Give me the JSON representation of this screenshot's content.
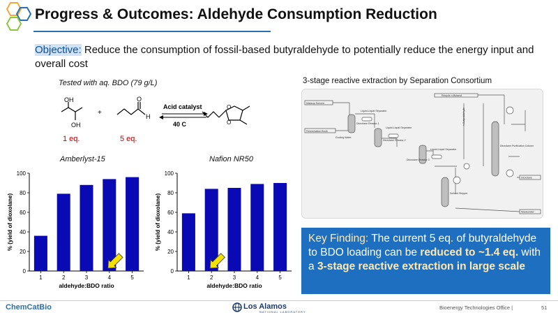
{
  "header": {
    "title": "Progress & Outcomes: Aldehyde Consumption Reduction",
    "colors": {
      "hex_orange": "#f2a93b",
      "hex_blue": "#2a6fb0",
      "hex_green": "#8cc63e"
    }
  },
  "objective": {
    "label": "Objective:",
    "text": " Reduce the consumption of fossil-based butyraldehyde to potentially reduce the energy input and overall cost"
  },
  "reaction": {
    "tested_with": "Tested with aq. BDO (79 g/L)",
    "bdo_oh_top": "OH",
    "bdo_oh_bottom": "OH",
    "plus": "+",
    "aldehyde_o": "O",
    "aldehyde_h": "H",
    "catalyst": "Acid catalyst",
    "temperature": "40  C",
    "product_o1": "O",
    "product_o2": "O",
    "bdo_equivalents": "1 eq.",
    "aldehyde_equivalents": "5 eq."
  },
  "chart_data": [
    {
      "type": "bar",
      "title": "Amberlyst-15",
      "categories": [
        "1",
        "2",
        "3",
        "4",
        "5"
      ],
      "values": [
        36,
        79,
        88,
        94,
        96
      ],
      "xlabel": "aldehyde:BDO ratio",
      "ylabel": "% (yield of dioxolane)",
      "ylim": [
        0,
        100
      ],
      "yticks": [
        "0",
        "20",
        "40",
        "60",
        "80",
        "100"
      ],
      "bar_color": "#0a0ab4",
      "arrow_at_category": "4",
      "arrow_color": "#f5e100"
    },
    {
      "type": "bar",
      "title": "Nafion NR50",
      "categories": [
        "1",
        "2",
        "3",
        "4",
        "5"
      ],
      "values": [
        59,
        84,
        85,
        89,
        90
      ],
      "xlabel": "aldehyde:BDO ratio",
      "ylabel": "% (yield of dioxolane)",
      "ylim": [
        0,
        100
      ],
      "yticks": [
        "0",
        "20",
        "40",
        "60",
        "80",
        "100"
      ],
      "bar_color": "#0a0ab4",
      "arrow_at_category": "2",
      "arrow_color": "#f5e100"
    }
  ],
  "diagram": {
    "title": "3-stage reactive extraction by Separation Consortium",
    "labels": {
      "recycle": "Recycle n-Butanol",
      "makeup": "Makeup Solvent",
      "fermentation": "Fermentation Broth",
      "llsep1": "Liquid-Liquid Separator",
      "reactor1": "Dioxolane Reactor 1",
      "llsep2": "Liquid-Liquid Separator",
      "reactor2": "Dioxolane Reactor 2",
      "llsep3": "Liquid-Liquid Separator",
      "reactor3": "Dioxolane Reactor 3",
      "cooling": "Cooling Water",
      "purification": "Dioxolane Purification Column",
      "stripper": "Solvent Stripper",
      "dioxolane": "Dioxolane",
      "wastewater": "Wastewater",
      "aldehyde": "n-Butyraldehyde"
    }
  },
  "key_finding": {
    "label": "Key Finding:",
    "t1": " The current 5 eq. of butyraldehyde to BDO loading can be ",
    "b1": "reduced to ~1.4 eq.",
    "t2": " with a ",
    "b2": "3-stage reactive extraction in large scale"
  },
  "footer": {
    "brand": "ChemCatBio",
    "lab": "Los Alamos",
    "lab_sub": "NATIONAL LABORATORY",
    "office": "Bioenergy Technologies Office  |",
    "page": "51"
  }
}
